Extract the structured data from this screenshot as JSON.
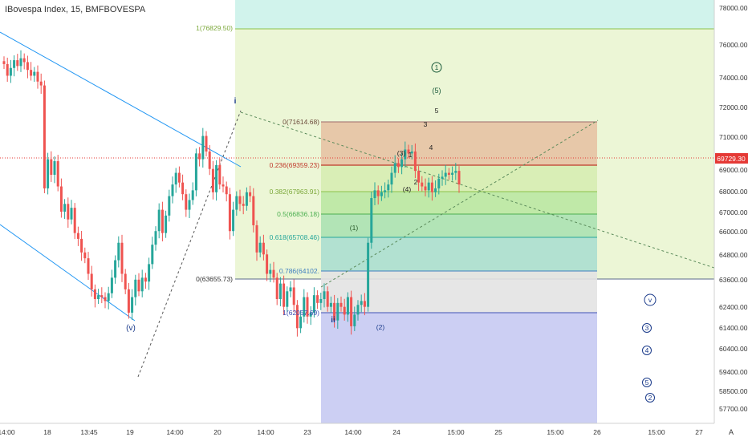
{
  "header": {
    "title": "IBovespa Index, 15, BMFBOVESPA"
  },
  "price_axis": {
    "ticks": [
      "78000.00",
      "76000.00",
      "74000.00",
      "72000.00",
      "71000.00",
      "70000.00",
      "69000.00",
      "68000.00",
      "67000.00",
      "66000.00",
      "64800.00",
      "63600.00",
      "62400.00",
      "61400.00",
      "60400.00",
      "59400.00",
      "58500.00",
      "57700.00"
    ],
    "last_price": "69729.30",
    "last_price_color": "#e53935"
  },
  "time_axis": {
    "ticks": [
      "14:00",
      "18",
      "13:45",
      "19",
      "14:00",
      "20",
      "14:00",
      "23",
      "14:00",
      "24",
      "15:00",
      "25",
      "15:00",
      "26",
      "15:00",
      "27"
    ],
    "corner_label": "A"
  },
  "fib_top": {
    "labels": [
      "1(76829.50)",
      "0(63655.73)"
    ]
  },
  "fib_retracement": {
    "labels": [
      "0(71614.68)",
      "0.236(69359.23)",
      "0.382(67963.91)",
      "0.5(66836.18)",
      "0.618(65708.46)",
      "0.786(64102.",
      "1(62057.69)"
    ]
  },
  "wave_labels": [
    "i",
    "ii",
    "(v)",
    "(1)",
    "(2)",
    "(3)",
    "(4)",
    "(5)",
    "1",
    "2",
    "3",
    "4",
    "5",
    "1",
    "v",
    "3",
    "4",
    "5",
    "2"
  ],
  "colors": {
    "up": "#26a69a",
    "down": "#ef5350",
    "trendline": "#2196f3",
    "wave_label": "#1a3a8a",
    "fib_label": "#7ca83a"
  },
  "chart_data": {
    "type": "candlestick",
    "series": [
      {
        "name": "IBovespa Index",
        "close": [
          75900,
          75300,
          75700,
          76100,
          75800,
          76200,
          76000,
          75600,
          75300,
          75500,
          75000,
          74800,
          69500,
          71000,
          70200,
          70900,
          69600,
          68300,
          68700,
          67900,
          68500,
          67200,
          66900,
          66200,
          65900,
          65100,
          64300,
          63800,
          64000,
          63900,
          63700,
          64100,
          64900,
          65800,
          66700,
          65100,
          64300,
          63100,
          63900,
          64800,
          64200,
          64900,
          64700,
          65600,
          66600,
          67300,
          68400,
          67200,
          68100,
          69100,
          69700,
          70300,
          69800,
          69200,
          68400,
          68900,
          69400,
          71300,
          71000,
          72200,
          71400,
          70500,
          69300,
          70700,
          69700,
          69600,
          69200,
          67300,
          68400,
          69100,
          68700,
          68600,
          69300,
          69100,
          67600,
          66200,
          66700,
          66100,
          65100,
          65300,
          64900,
          63800,
          64600,
          63400,
          64200,
          64400,
          63500,
          62300,
          62900,
          63900,
          62900,
          63100,
          64000,
          63600,
          63800,
          64200,
          63400,
          63600,
          62700,
          63600,
          63400,
          63000,
          63900,
          62400,
          63000,
          63500,
          63700,
          63400,
          66700,
          69000,
          69400,
          69100,
          69300,
          69400,
          69700,
          70300,
          70800,
          70600,
          71000,
          71500,
          71300,
          71400,
          70400,
          69800,
          69600,
          69400,
          69800,
          69300,
          69500,
          70000,
          70100,
          70300,
          70200,
          70300,
          70400,
          69700
        ]
      }
    ],
    "ylim": [
      57400,
      79200
    ],
    "last_price": 69729.3
  }
}
